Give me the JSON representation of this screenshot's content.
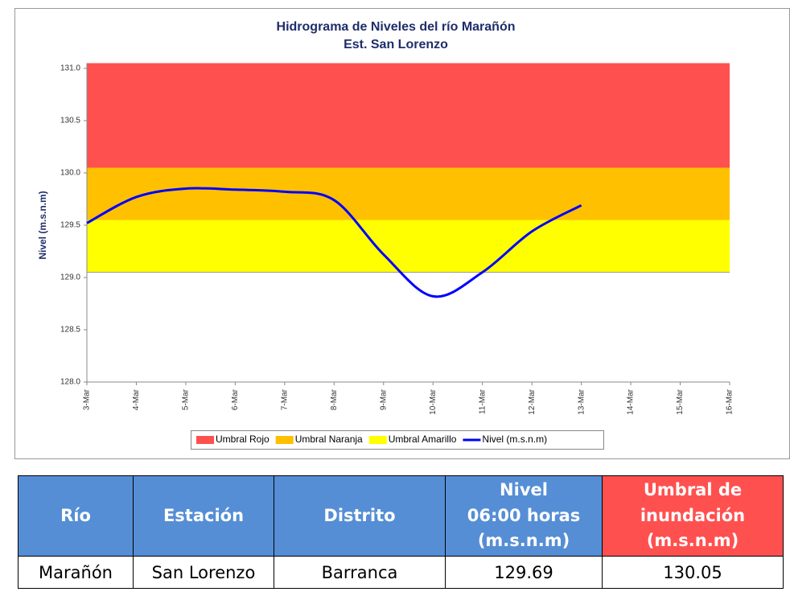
{
  "chart_data": {
    "type": "line",
    "title": "Hidrograma de Niveles del río Marañón",
    "subtitle": "Est. San Lorenzo",
    "y_label": "Nivel (m.s.n.m)",
    "categories": [
      "3-Mar",
      "4-Mar",
      "5-Mar",
      "6-Mar",
      "7-Mar",
      "8-Mar",
      "9-Mar",
      "10-Mar",
      "11-Mar",
      "12-Mar",
      "13-Mar",
      "14-Mar",
      "15-Mar",
      "16-Mar"
    ],
    "bands": [
      {
        "name": "Umbral Rojo",
        "color": "#ff5050",
        "range": [
          130.05,
          131.05
        ]
      },
      {
        "name": "Umbral Naranja",
        "color": "#ffc000",
        "range": [
          129.55,
          130.05
        ]
      },
      {
        "name": "Umbral Amarillo",
        "color": "#ffff00",
        "range": [
          129.05,
          129.55
        ]
      }
    ],
    "series": [
      {
        "name": "Nivel (m.s.n.m)",
        "color": "#0000ff",
        "values": [
          129.52,
          129.77,
          129.85,
          129.84,
          129.82,
          129.74,
          129.22,
          128.82,
          129.05,
          129.44,
          129.69,
          null,
          null,
          null
        ]
      }
    ],
    "ylim": [
      128,
      131.05
    ],
    "yticks": [
      {
        "value": 128,
        "label": "128.0"
      },
      {
        "value": 128.5,
        "label": "128.5"
      },
      {
        "value": 129,
        "label": "129.0"
      },
      {
        "value": 129.5,
        "label": "129.5"
      },
      {
        "value": 130,
        "label": "130.0"
      },
      {
        "value": 130.5,
        "label": "130.5"
      },
      {
        "value": 131,
        "label": "131.0"
      }
    ],
    "legend": "bottom"
  },
  "table": {
    "header": [
      "Río",
      "Estación",
      "Distrito",
      "Nivel\n06:00 horas\n(m.s.n.m)",
      "Umbral de\ninundación\n(m.s.n.m)"
    ],
    "rows": [
      [
        "Marañón",
        "San Lorenzo",
        "Barranca",
        "129.69",
        "130.05"
      ]
    ]
  }
}
